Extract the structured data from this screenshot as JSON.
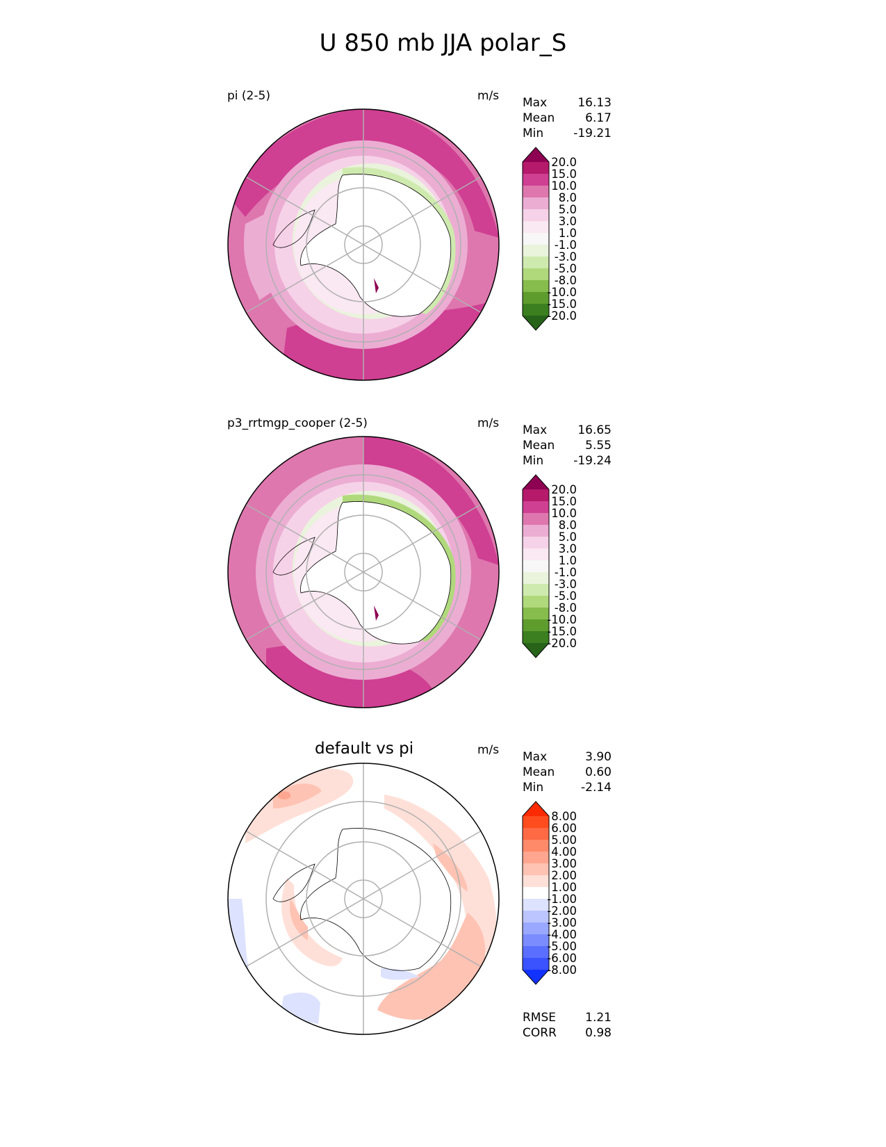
{
  "figure_title": "U 850 mb JJA polar_S",
  "panels": [
    {
      "label": "pi (2-5)",
      "units": "m/s",
      "stats": {
        "max_label": "Max",
        "max": "16.13",
        "mean_label": "Mean",
        "mean": "6.17",
        "min_label": "Min",
        "min": "-19.21"
      },
      "colorbar": {
        "ticks": [
          "20.0",
          "15.0",
          "10.0",
          "8.0",
          "5.0",
          "3.0",
          "1.0",
          "-1.0",
          "-3.0",
          "-5.0",
          "-8.0",
          "-10.0",
          "-15.0",
          "-20.0"
        ],
        "colors_top_to_bottom": [
          "#8e0152",
          "#b51a6b",
          "#cf3f92",
          "#de77ae",
          "#ecadd3",
          "#f6d2e8",
          "#fae8f2",
          "#f7f7f7",
          "#eaf3dc",
          "#cfeaae",
          "#b0d97c",
          "#86bd4c",
          "#5e9c2e",
          "#3c7f20",
          "#276419"
        ]
      }
    },
    {
      "label": "p3_rrtmgp_cooper (2-5)",
      "units": "m/s",
      "stats": {
        "max_label": "Max",
        "max": "16.65",
        "mean_label": "Mean",
        "mean": "5.55",
        "min_label": "Min",
        "min": "-19.24"
      },
      "colorbar": {
        "ticks": [
          "20.0",
          "15.0",
          "10.0",
          "8.0",
          "5.0",
          "3.0",
          "1.0",
          "-1.0",
          "-3.0",
          "-5.0",
          "-8.0",
          "-10.0",
          "-15.0",
          "-20.0"
        ],
        "colors_top_to_bottom": [
          "#8e0152",
          "#b51a6b",
          "#cf3f92",
          "#de77ae",
          "#ecadd3",
          "#f6d2e8",
          "#fae8f2",
          "#f7f7f7",
          "#eaf3dc",
          "#cfeaae",
          "#b0d97c",
          "#86bd4c",
          "#5e9c2e",
          "#3c7f20",
          "#276419"
        ]
      }
    },
    {
      "title": "default vs pi",
      "units": "m/s",
      "stats": {
        "max_label": "Max",
        "max": "3.90",
        "mean_label": "Mean",
        "mean": "0.60",
        "min_label": "Min",
        "min": "-2.14"
      },
      "extra_stats": {
        "rmse_label": "RMSE",
        "rmse": "1.21",
        "corr_label": "CORR",
        "corr": "0.98"
      },
      "colorbar": {
        "ticks": [
          "8.00",
          "6.00",
          "5.00",
          "4.00",
          "3.00",
          "2.00",
          "1.00",
          "-1.00",
          "-2.00",
          "-3.00",
          "-4.00",
          "-5.00",
          "-6.00",
          "-8.00"
        ],
        "colors_top_to_bottom": [
          "#ff2a00",
          "#ff4c1e",
          "#ff6a44",
          "#ff8a6a",
          "#ffa690",
          "#ffc3b4",
          "#ffe0d8",
          "#ffffff",
          "#dde2ff",
          "#bcc5ff",
          "#9aa8ff",
          "#7b8cff",
          "#5a6eff",
          "#3a52ff",
          "#1232ff"
        ]
      }
    }
  ],
  "chart_data": [
    {
      "type": "heatmap",
      "title": "pi (2-5)",
      "projection": "south polar stereographic",
      "units": "m/s",
      "max": 16.13,
      "mean": 6.17,
      "min": -19.21,
      "levels": [
        -20,
        -15,
        -10,
        -8,
        -5,
        -3,
        -1,
        1,
        3,
        5,
        8,
        10,
        15,
        20
      ]
    },
    {
      "type": "heatmap",
      "title": "p3_rrtmgp_cooper (2-5)",
      "projection": "south polar stereographic",
      "units": "m/s",
      "max": 16.65,
      "mean": 5.55,
      "min": -19.24,
      "levels": [
        -20,
        -15,
        -10,
        -8,
        -5,
        -3,
        -1,
        1,
        3,
        5,
        8,
        10,
        15,
        20
      ]
    },
    {
      "type": "heatmap",
      "title": "default vs pi",
      "projection": "south polar stereographic",
      "units": "m/s",
      "max": 3.9,
      "mean": 0.6,
      "min": -2.14,
      "rmse": 1.21,
      "corr": 0.98,
      "levels": [
        -8,
        -6,
        -5,
        -4,
        -3,
        -2,
        -1,
        1,
        2,
        3,
        4,
        5,
        6,
        8
      ]
    }
  ]
}
